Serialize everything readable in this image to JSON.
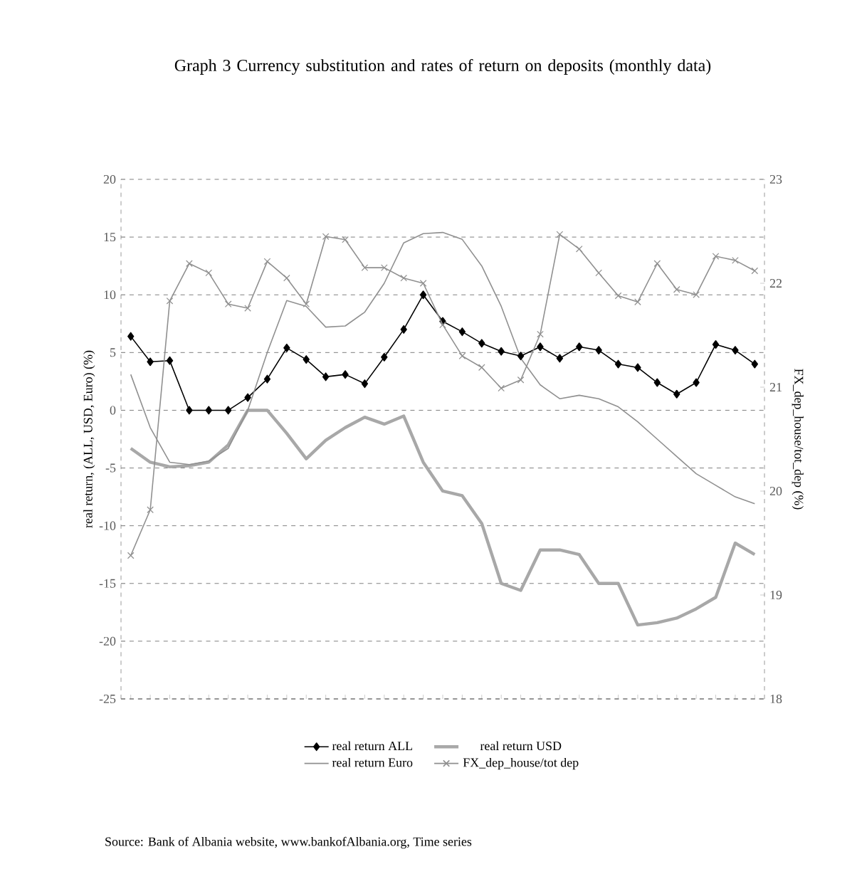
{
  "chart_data": {
    "type": "line",
    "title": "Graph 3 Currency substitution and rates of return on deposits (monthly data)",
    "ylabel": "real return, (ALL, USD, Euro) (%)",
    "y2label": "FX_dep_house/tot_dep (%)",
    "categories": [
      null,
      null,
      null,
      null,
      null,
      null,
      null,
      null,
      null,
      null,
      null,
      null,
      null,
      null,
      null,
      null,
      null,
      null,
      null,
      null,
      null,
      null,
      null,
      null,
      null,
      null,
      null,
      null,
      null,
      null,
      null,
      null,
      null
    ],
    "series": [
      {
        "name": "real return ALL",
        "color": "#000000",
        "marker": "diamond",
        "values": [
          6.4,
          4.2,
          4.3,
          0,
          0,
          0,
          1.1,
          2.7,
          5.4,
          4.4,
          2.9,
          3.1,
          2.3,
          4.6,
          7.0,
          10,
          7.7,
          6.8,
          5.8,
          5.1,
          4.7,
          5.5,
          4.5,
          5.5,
          5.2,
          4.0,
          3.7,
          2.4,
          1.4,
          2.4,
          5.7,
          5.2,
          4.0
        ]
      },
      {
        "name": "real return USD",
        "color": "#a8a8a8",
        "marker": "none",
        "values": [
          -3.3,
          -4.5,
          -4.9,
          -4.8,
          -4.5,
          -3,
          0,
          0,
          -2,
          -4.2,
          -2.6,
          -1.5,
          -0.6,
          -1.2,
          -0.5,
          -4.5,
          -7.0,
          -7.4,
          -9.8,
          -15,
          -15.6,
          -12.1,
          -12.1,
          -12.5,
          -15,
          -15,
          -18.6,
          -18.4,
          -18.0,
          -17.2,
          -16.2,
          -11.5,
          -12.5
        ]
      },
      {
        "name": "real return Euro",
        "color": "#909090",
        "marker": "none",
        "values": [
          3.1,
          -1.5,
          -4.5,
          -4.7,
          -4.4,
          -3.3,
          0,
          5,
          9.5,
          9,
          7.2,
          7.3,
          8.5,
          11,
          14.5,
          15.3,
          15.4,
          14.8,
          12.5,
          9,
          4.5,
          2.2,
          1,
          1.3,
          1,
          0.3,
          -1,
          -2.5,
          -4,
          -5.5,
          -6.5,
          -7.5,
          -8.1
        ]
      },
      {
        "name": "FX_dep_house/tot dep",
        "color": "#909090",
        "marker": "cross",
        "axis": "y2",
        "values": [
          19.38,
          19.82,
          21.83,
          22.19,
          22.1,
          21.8,
          21.76,
          22.21,
          22.05,
          21.8,
          22.45,
          22.42,
          22.15,
          22.15,
          22.05,
          22.0,
          21.6,
          21.3,
          21.19,
          20.99,
          21.07,
          21.51,
          22.47,
          22.33,
          22.1,
          21.88,
          21.82,
          22.19,
          21.94,
          21.89,
          22.26,
          22.22,
          22.12
        ]
      }
    ],
    "ylim": [
      -25,
      20
    ],
    "yticks": [
      -25,
      -20,
      -15,
      -10,
      -5,
      0,
      5,
      10,
      15,
      20
    ],
    "y2lim": [
      18,
      23
    ],
    "y2ticks": [
      18,
      19,
      20,
      21,
      22,
      23
    ],
    "grid": "y",
    "legend": "bottom",
    "line_style": "solid",
    "annotations": [
      "Source: Bank of Albania website, www.bankofAlbania.org, Time series"
    ]
  }
}
